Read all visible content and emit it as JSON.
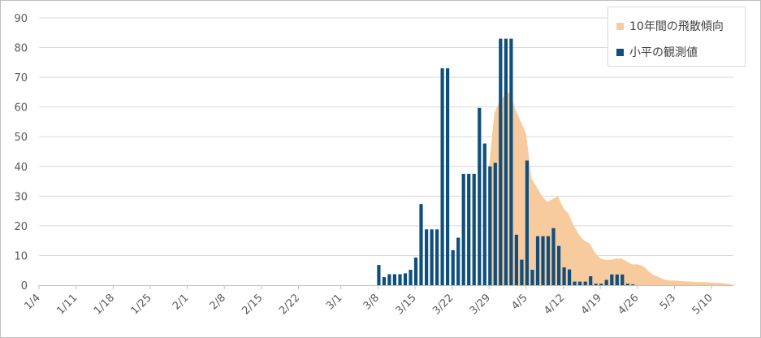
{
  "chart_data": {
    "type": "bar",
    "title": "",
    "xlabel": "",
    "ylabel": "",
    "ylim": [
      0,
      90
    ],
    "yticks": [
      0,
      10,
      20,
      30,
      40,
      50,
      60,
      70,
      80,
      90
    ],
    "grid": true,
    "legend_position": "top-right",
    "x_start": "1/4",
    "x_tick_labels": [
      "1/4",
      "1/11",
      "1/18",
      "1/25",
      "2/1",
      "2/8",
      "2/15",
      "2/22",
      "3/1",
      "3/8",
      "3/15",
      "3/22",
      "3/29",
      "4/5",
      "4/12",
      "4/19",
      "4/26",
      "5/3",
      "5/10"
    ],
    "series": [
      {
        "name": "10年間の飛散傾向",
        "kind": "area",
        "color": "#f8cb9f",
        "dates": [
          "3/29",
          "3/30",
          "3/31",
          "4/1",
          "4/2",
          "4/3",
          "4/4",
          "4/5",
          "4/6",
          "4/7",
          "4/8",
          "4/9",
          "4/10",
          "4/11",
          "4/12",
          "4/13",
          "4/14",
          "4/15",
          "4/16",
          "4/17",
          "4/18",
          "4/19",
          "4/20",
          "4/21",
          "4/22",
          "4/23",
          "4/24",
          "4/25",
          "4/26",
          "4/27",
          "4/28",
          "4/29",
          "4/30",
          "5/1",
          "5/2",
          "5/3",
          "5/4",
          "5/5",
          "5/6",
          "5/7",
          "5/8",
          "5/9",
          "5/10",
          "5/11",
          "5/12",
          "5/13",
          "5/14",
          "5/15"
        ],
        "values": [
          40,
          58,
          62,
          64,
          65,
          59,
          55,
          51,
          36,
          33,
          30,
          28,
          29,
          30,
          26,
          24,
          20,
          17,
          15,
          14,
          11,
          9,
          8.5,
          8.5,
          9,
          9,
          8,
          7,
          7,
          6.5,
          5,
          3.5,
          2.8,
          2,
          1.6,
          1.6,
          1.4,
          1.3,
          1.2,
          1.1,
          1.0,
          1.0,
          0.9,
          0.8,
          0.7,
          0.5,
          0.2,
          0
        ]
      },
      {
        "name": "小平の観測値",
        "kind": "bar",
        "color": "#0f4f7d",
        "dates": [
          "3/8",
          "3/9",
          "3/10",
          "3/11",
          "3/12",
          "3/13",
          "3/14",
          "3/15",
          "3/16",
          "3/17",
          "3/18",
          "3/19",
          "3/20",
          "3/21",
          "3/22",
          "3/23",
          "3/24",
          "3/25",
          "3/26",
          "3/27",
          "3/28",
          "3/29",
          "3/30",
          "3/31",
          "4/1",
          "4/2",
          "4/3",
          "4/4",
          "4/5",
          "4/6",
          "4/7",
          "4/8",
          "4/9",
          "4/10",
          "4/11",
          "4/12",
          "4/13",
          "4/14",
          "4/15",
          "4/16",
          "4/17",
          "4/18",
          "4/19",
          "4/20",
          "4/21",
          "4/22",
          "4/23",
          "4/24",
          "4/25"
        ],
        "values": [
          6.8,
          2.7,
          3.7,
          3.7,
          3.7,
          4,
          5.2,
          9.3,
          27.3,
          18.8,
          18.8,
          18.8,
          73,
          73,
          11.8,
          16,
          37.5,
          37.5,
          37.5,
          59.7,
          47.7,
          40,
          41.2,
          83,
          83,
          83,
          17,
          8.6,
          42,
          5.2,
          16.5,
          16.5,
          16.5,
          19.2,
          13.2,
          6,
          5.3,
          1.2,
          1.2,
          1.2,
          3,
          0.5,
          0.5,
          1.8,
          3.6,
          3.6,
          3.6,
          0.5,
          0.3
        ]
      }
    ]
  },
  "legend": {
    "area_label": "10年間の飛散傾向",
    "bar_label": "小平の観測値"
  }
}
